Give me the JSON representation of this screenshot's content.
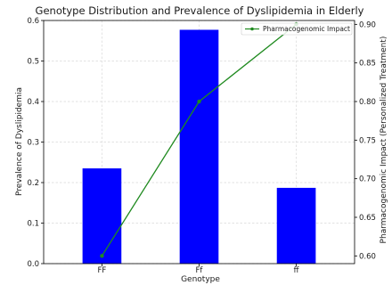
{
  "chart_data": {
    "type": "bar",
    "title": "Genotype Distribution and Prevalence of Dyslipidemia in Elderly",
    "xlabel": "Genotype",
    "ylabel": "Prevalence of Dyslipidemia",
    "y2label": "Pharmacogenomic Impact (Personalized Treatment)",
    "categories": [
      "FF",
      "Ff",
      "ff"
    ],
    "bars": {
      "values": [
        0.235,
        0.577,
        0.187
      ],
      "color": "#0000ff"
    },
    "line": {
      "name": "Pharmacogenomic Impact",
      "values": [
        0.6,
        0.8,
        0.9
      ],
      "color": "#1f8a1f"
    },
    "ylim": [
      0,
      0.6
    ],
    "yticks": [
      "0.0",
      "0.1",
      "0.2",
      "0.3",
      "0.4",
      "0.5",
      "0.6"
    ],
    "y2lim": [
      0.59,
      0.905
    ],
    "y2ticks": [
      "0.60",
      "0.65",
      "0.70",
      "0.75",
      "0.80",
      "0.85",
      "0.90"
    ],
    "grid": true,
    "legend_position": "top-right"
  }
}
